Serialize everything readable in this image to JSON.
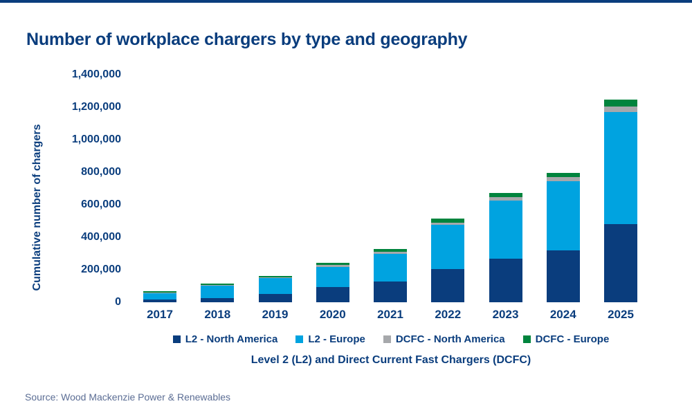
{
  "page": {
    "title": "Number of workplace chargers by type and geography",
    "source_text": "Source: Wood Mackenzie Power & Renewables"
  },
  "colors": {
    "navy": "#0a3d7d",
    "light_blue": "#00a3e0",
    "gray": "#a6a8ab",
    "green": "#00843d",
    "source_text": "#5b6d94",
    "top_border": "#0a3d7d"
  },
  "chart_data": {
    "type": "bar",
    "stacked": true,
    "title": "Number of workplace chargers by type and geography",
    "xlabel": "Level 2 (L2) and Direct Current Fast Chargers (DCFC)",
    "ylabel": "Cumulative number of chargers",
    "ylim": [
      0,
      1400000
    ],
    "ytick_step": 200000,
    "ytick_labels": [
      "0",
      "200,000",
      "400,000",
      "600,000",
      "800,000",
      "1,000,000",
      "1,200,000",
      "1,400,000"
    ],
    "grid": false,
    "legend_position": "bottom",
    "categories": [
      "2017",
      "2018",
      "2019",
      "2020",
      "2021",
      "2022",
      "2023",
      "2024",
      "2025"
    ],
    "series": [
      {
        "name": "L2 - North America",
        "color": "#0a3d7d",
        "values": [
          15000,
          26000,
          52000,
          95000,
          128000,
          205000,
          268000,
          320000,
          480000
        ]
      },
      {
        "name": "L2 - Europe",
        "color": "#00a3e0",
        "values": [
          42000,
          77000,
          95000,
          122000,
          170000,
          270000,
          356000,
          425000,
          690000
        ]
      },
      {
        "name": "DCFC - North America",
        "color": "#a6a8ab",
        "values": [
          4000,
          4000,
          5000,
          12000,
          13000,
          14000,
          21000,
          26000,
          34000
        ]
      },
      {
        "name": "DCFC - Europe",
        "color": "#00843d",
        "values": [
          6000,
          8000,
          9000,
          12000,
          15000,
          25000,
          26000,
          26000,
          43000
        ]
      }
    ]
  }
}
